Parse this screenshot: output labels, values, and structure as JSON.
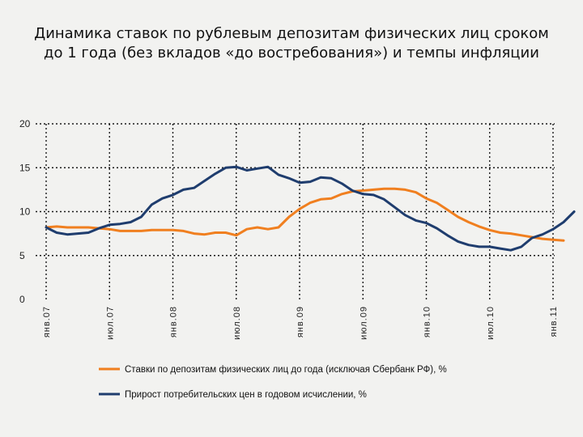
{
  "title": {
    "line1": "Динамика ставок по рублевым депозитам физических лиц сроком",
    "line2": "до 1 года (без вкладов «до востребования») и темпы инфляции"
  },
  "chart_data": {
    "type": "line",
    "title": "Динамика ставок по рублевым депозитам физических лиц сроком до 1 года (без вкладов «до востребования») и темпы инфляции",
    "ylim": [
      0,
      20
    ],
    "y_ticks": [
      "20",
      "15",
      "10",
      "5",
      "0"
    ],
    "y_tick_values": [
      20,
      15,
      10,
      5,
      0
    ],
    "x_tick_labels": [
      "янв.07",
      "июл.07",
      "янв.08",
      "июл.08",
      "янв.09",
      "июл.09",
      "янв.10",
      "июл.10",
      "янв.11"
    ],
    "grid": true,
    "legend_position": "bottom",
    "colors": {
      "deposit": "#f07f1f",
      "inflation": "#1f3d6e",
      "grid": "#1a1a1a"
    },
    "series": [
      {
        "name": "Ставки по депозитам физических лиц до года (исключая Сбербанк РФ), %",
        "key": "deposit",
        "values": [
          8.2,
          8.3,
          8.2,
          8.2,
          8.2,
          8.1,
          8.0,
          7.8,
          7.8,
          7.8,
          7.9,
          7.9,
          7.9,
          7.8,
          7.5,
          7.4,
          7.6,
          7.6,
          7.3,
          8.0,
          8.2,
          8.0,
          8.2,
          9.4,
          10.3,
          11.0,
          11.4,
          11.5,
          12.0,
          12.3,
          12.4,
          12.5,
          12.6,
          12.6,
          12.5,
          12.2,
          11.5,
          11.0,
          10.2,
          9.4,
          8.8,
          8.3,
          7.9,
          7.6,
          7.5,
          7.3,
          7.1,
          6.9,
          6.8,
          6.7
        ]
      },
      {
        "name": "Прирост потребительских цен в годовом исчислении, %",
        "key": "inflation",
        "values": [
          8.2,
          7.6,
          7.4,
          7.5,
          7.6,
          8.1,
          8.5,
          8.6,
          8.8,
          9.4,
          10.8,
          11.5,
          11.9,
          12.5,
          12.7,
          13.5,
          14.3,
          15.0,
          15.1,
          14.7,
          14.9,
          15.1,
          14.2,
          13.8,
          13.3,
          13.4,
          13.9,
          13.8,
          13.2,
          12.4,
          12.0,
          11.9,
          11.4,
          10.5,
          9.6,
          9.0,
          8.7,
          8.1,
          7.3,
          6.6,
          6.2,
          6.0,
          6.0,
          5.8,
          5.6,
          6.0,
          7.0,
          7.4,
          8.0,
          8.8,
          10.0
        ]
      }
    ]
  }
}
